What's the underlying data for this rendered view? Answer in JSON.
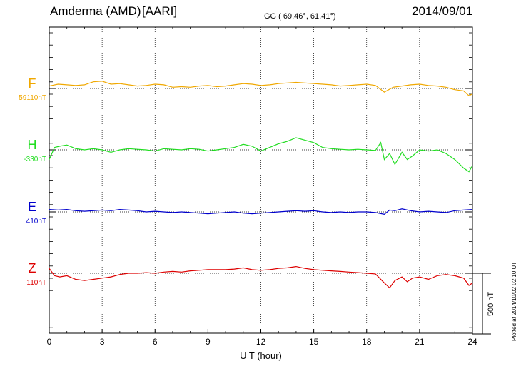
{
  "header": {
    "station": "Amderma (AMD)",
    "institute": "[AARI]",
    "coords": "GG ( 69.46°,  61.41°)",
    "date": "2014/09/01"
  },
  "footer": {
    "plotted_note": "Plotted at 2014/10/02 02:10 UT"
  },
  "chart_data": {
    "type": "line",
    "title": "Amderma (AMD)  [AARI]",
    "xlabel": "U T (hour)",
    "ylabel": "",
    "xlim": [
      0,
      24
    ],
    "x_ticks": [
      "0",
      "3",
      "6",
      "9",
      "12",
      "15",
      "18",
      "21",
      "24"
    ],
    "grid": "dotted vertical lines every 3 hours",
    "scale_bar": {
      "label": "500 nT",
      "value_nT": 500
    },
    "series": [
      {
        "name": "F",
        "baseline_label": "59110nT",
        "color": "#f0a800",
        "units": "nT offset from baseline",
        "x": [
          0,
          0.5,
          1,
          1.5,
          2,
          2.5,
          3,
          3.5,
          4,
          4.5,
          5,
          5.5,
          6,
          6.5,
          7,
          7.5,
          8,
          8.5,
          9,
          9.5,
          10,
          10.5,
          11,
          11.5,
          12,
          12.5,
          13,
          13.5,
          14,
          14.5,
          15,
          15.5,
          16,
          16.5,
          17,
          17.5,
          18,
          18.5,
          19,
          19.5,
          20,
          20.5,
          21,
          21.5,
          22,
          22.5,
          23,
          23.5,
          23.8,
          24
        ],
        "y": [
          20,
          35,
          30,
          25,
          30,
          55,
          60,
          35,
          40,
          30,
          20,
          25,
          35,
          30,
          10,
          15,
          10,
          20,
          25,
          15,
          20,
          30,
          40,
          35,
          25,
          30,
          40,
          45,
          50,
          45,
          40,
          35,
          30,
          20,
          25,
          30,
          35,
          25,
          -30,
          10,
          20,
          30,
          35,
          25,
          20,
          10,
          -10,
          -20,
          -60,
          -45
        ]
      },
      {
        "name": "H",
        "baseline_label": "-330nT",
        "color": "#22dd22",
        "units": "nT offset from baseline",
        "x": [
          0,
          0.3,
          0.6,
          1,
          1.5,
          2,
          2.5,
          3,
          3.5,
          4,
          4.5,
          5,
          5.5,
          6,
          6.5,
          7,
          7.5,
          8,
          8.5,
          9,
          9.5,
          10,
          10.5,
          11,
          11.5,
          12,
          12.5,
          13,
          13.5,
          14,
          14.5,
          15,
          15.5,
          16,
          16.5,
          17,
          17.5,
          18,
          18.5,
          18.8,
          19,
          19.3,
          19.6,
          20,
          20.3,
          20.6,
          21,
          21.5,
          22,
          22.5,
          23,
          23.5,
          23.8,
          24
        ],
        "y": [
          -80,
          20,
          30,
          40,
          10,
          0,
          10,
          0,
          -20,
          0,
          10,
          5,
          0,
          -10,
          10,
          5,
          0,
          10,
          5,
          -10,
          0,
          10,
          20,
          45,
          30,
          -10,
          20,
          50,
          70,
          100,
          80,
          60,
          20,
          10,
          5,
          0,
          5,
          0,
          -5,
          60,
          -80,
          -30,
          -120,
          -20,
          -80,
          -50,
          0,
          -10,
          0,
          -30,
          -80,
          -150,
          -180,
          -130
        ]
      },
      {
        "name": "E",
        "baseline_label": "410nT",
        "color": "#0000cc",
        "units": "nT offset from baseline",
        "x": [
          0,
          0.5,
          1,
          1.5,
          2,
          2.5,
          3,
          3.5,
          4,
          4.5,
          5,
          5.5,
          6,
          6.5,
          7,
          7.5,
          8,
          8.5,
          9,
          9.5,
          10,
          10.5,
          11,
          11.5,
          12,
          12.5,
          13,
          13.5,
          14,
          14.5,
          15,
          15.5,
          16,
          16.5,
          17,
          17.5,
          18,
          18.5,
          19,
          19.3,
          19.6,
          20,
          20.5,
          21,
          21.5,
          22,
          22.5,
          23,
          23.5,
          24
        ],
        "y": [
          20,
          15,
          20,
          10,
          5,
          10,
          15,
          10,
          20,
          15,
          10,
          0,
          5,
          0,
          -5,
          0,
          -5,
          -10,
          -15,
          -10,
          -5,
          0,
          -10,
          -15,
          -10,
          -5,
          0,
          5,
          10,
          5,
          10,
          0,
          -5,
          0,
          -5,
          0,
          0,
          -5,
          -20,
          15,
          10,
          25,
          10,
          0,
          5,
          0,
          -5,
          10,
          15,
          20
        ]
      },
      {
        "name": "Z",
        "baseline_label": "110nT",
        "color": "#dd0000",
        "units": "nT offset from baseline",
        "x": [
          0,
          0.3,
          0.6,
          1,
          1.5,
          2,
          2.5,
          3,
          3.5,
          4,
          4.5,
          5,
          5.5,
          6,
          6.5,
          7,
          7.5,
          8,
          8.5,
          9,
          9.5,
          10,
          10.5,
          11,
          11.5,
          12,
          12.5,
          13,
          13.5,
          14,
          14.5,
          15,
          15.5,
          16,
          16.5,
          17,
          17.5,
          18,
          18.5,
          19,
          19.3,
          19.6,
          20,
          20.3,
          20.6,
          21,
          21.5,
          22,
          22.5,
          23,
          23.5,
          23.8,
          24
        ],
        "y": [
          40,
          -20,
          -30,
          -20,
          -50,
          -60,
          -50,
          -40,
          -30,
          -10,
          0,
          0,
          5,
          0,
          10,
          15,
          10,
          20,
          25,
          30,
          30,
          30,
          35,
          45,
          30,
          25,
          30,
          40,
          45,
          55,
          40,
          30,
          25,
          20,
          15,
          10,
          5,
          0,
          -5,
          -80,
          -120,
          -60,
          -30,
          -70,
          -40,
          -30,
          -50,
          -20,
          -10,
          -20,
          -40,
          -100,
          -80
        ]
      }
    ]
  }
}
